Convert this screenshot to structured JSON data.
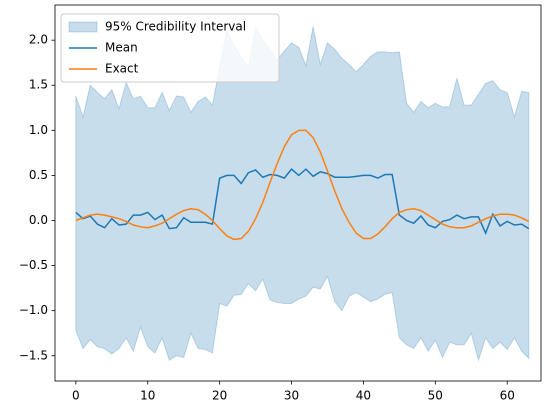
{
  "chart_data": {
    "type": "line",
    "x": [
      0,
      1,
      2,
      3,
      4,
      5,
      6,
      7,
      8,
      9,
      10,
      11,
      12,
      13,
      14,
      15,
      16,
      17,
      18,
      19,
      20,
      21,
      22,
      23,
      24,
      25,
      26,
      27,
      28,
      29,
      30,
      31,
      32,
      33,
      34,
      35,
      36,
      37,
      38,
      39,
      40,
      41,
      42,
      43,
      44,
      45,
      46,
      47,
      48,
      49,
      50,
      51,
      52,
      53,
      54,
      55,
      56,
      57,
      58,
      59,
      60,
      61,
      62,
      63
    ],
    "series": [
      {
        "name": "95% Credibility Interval",
        "color": "#1f77b4",
        "alpha": 0.25,
        "upper": [
          1.38,
          1.15,
          1.5,
          1.42,
          1.35,
          1.45,
          1.24,
          1.53,
          1.35,
          1.38,
          1.25,
          1.25,
          1.42,
          1.22,
          1.38,
          1.37,
          1.2,
          1.32,
          1.37,
          1.28,
          1.7,
          2.1,
          1.95,
          1.8,
          1.7,
          2.15,
          2.0,
          1.9,
          1.78,
          1.88,
          1.97,
          1.92,
          1.72,
          2.15,
          1.73,
          1.97,
          1.9,
          1.8,
          1.73,
          1.65,
          1.73,
          1.82,
          1.87,
          1.87,
          1.86,
          1.87,
          1.3,
          1.2,
          1.32,
          1.25,
          1.3,
          1.26,
          1.26,
          1.58,
          1.28,
          1.28,
          1.4,
          1.52,
          1.55,
          1.45,
          1.42,
          1.15,
          1.43,
          1.42
        ],
        "lower": [
          -1.22,
          -1.42,
          -1.32,
          -1.4,
          -1.42,
          -1.48,
          -1.42,
          -1.3,
          -1.45,
          -1.18,
          -1.4,
          -1.47,
          -1.3,
          -1.55,
          -1.5,
          -1.52,
          -1.25,
          -1.42,
          -1.43,
          -1.47,
          -0.92,
          -0.95,
          -0.83,
          -0.82,
          -0.7,
          -0.78,
          -0.65,
          -0.88,
          -0.91,
          -0.92,
          -0.92,
          -0.87,
          -0.84,
          -0.74,
          -0.76,
          -0.62,
          -0.9,
          -1.0,
          -0.84,
          -0.8,
          -0.85,
          -0.9,
          -0.87,
          -0.82,
          -0.8,
          -1.3,
          -1.38,
          -1.42,
          -1.3,
          -1.45,
          -1.33,
          -1.52,
          -1.35,
          -1.38,
          -1.38,
          -1.25,
          -1.55,
          -1.3,
          -1.42,
          -1.35,
          -1.43,
          -1.3,
          -1.45,
          -1.53
        ]
      },
      {
        "name": "Mean",
        "color": "#1f77b4",
        "values": [
          0.09,
          0.02,
          0.05,
          -0.04,
          -0.08,
          0.02,
          -0.05,
          -0.04,
          0.06,
          0.06,
          0.09,
          0.01,
          0.06,
          -0.09,
          -0.08,
          0.03,
          -0.02,
          -0.02,
          -0.02,
          -0.04,
          0.47,
          0.5,
          0.5,
          0.41,
          0.53,
          0.56,
          0.48,
          0.51,
          0.5,
          0.47,
          0.57,
          0.5,
          0.57,
          0.49,
          0.54,
          0.52,
          0.48,
          0.48,
          0.48,
          0.49,
          0.5,
          0.5,
          0.47,
          0.51,
          0.51,
          0.06,
          0.0,
          -0.03,
          0.05,
          -0.05,
          -0.08,
          -0.01,
          0.01,
          0.06,
          0.02,
          0.04,
          0.04,
          -0.14,
          0.07,
          -0.06,
          -0.01,
          -0.05,
          -0.04,
          -0.09
        ]
      },
      {
        "name": "Exact",
        "color": "#ff7f0e",
        "values": [
          0.0,
          0.03,
          0.06,
          0.07,
          0.06,
          0.04,
          0.02,
          -0.01,
          -0.05,
          -0.07,
          -0.08,
          -0.06,
          -0.03,
          0.02,
          0.07,
          0.11,
          0.13,
          0.12,
          0.07,
          0.0,
          -0.09,
          -0.17,
          -0.21,
          -0.2,
          -0.12,
          0.02,
          0.2,
          0.42,
          0.63,
          0.82,
          0.95,
          1.0,
          1.0,
          0.92,
          0.76,
          0.55,
          0.33,
          0.13,
          -0.02,
          -0.14,
          -0.2,
          -0.2,
          -0.15,
          -0.07,
          0.02,
          0.09,
          0.12,
          0.13,
          0.11,
          0.06,
          0.01,
          -0.04,
          -0.07,
          -0.08,
          -0.08,
          -0.06,
          -0.02,
          0.02,
          0.05,
          0.07,
          0.07,
          0.06,
          0.03,
          -0.01
        ]
      }
    ],
    "xlim": [
      -2.9,
      64.7
    ],
    "xticks": [
      0,
      10,
      20,
      30,
      40,
      50,
      60
    ],
    "ylim": [
      -1.78,
      2.39
    ],
    "yticks": [
      {
        "value": -1.5,
        "label": "−1.5"
      },
      {
        "value": -1.0,
        "label": "−1.0"
      },
      {
        "value": -0.5,
        "label": "−0.5"
      },
      {
        "value": 0,
        "label": "0.0"
      },
      {
        "value": 0.5,
        "label": "0.5"
      },
      {
        "value": 1.0,
        "label": "1.0"
      },
      {
        "value": 1.5,
        "label": "1.5"
      },
      {
        "value": 2.0,
        "label": "2.0"
      }
    ],
    "legend": "upper left"
  }
}
